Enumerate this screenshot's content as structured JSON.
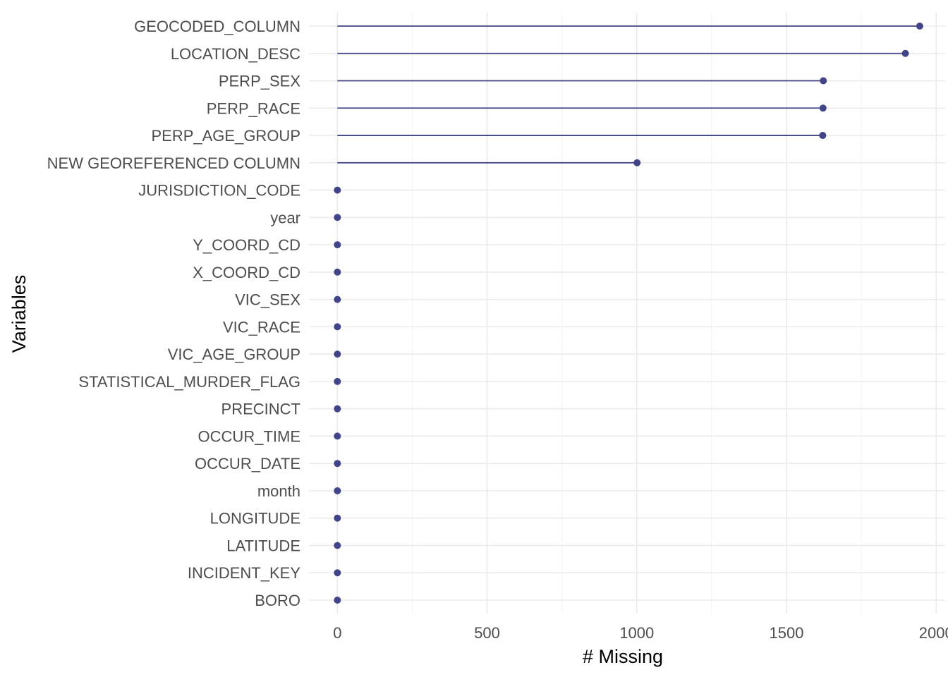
{
  "chart_data": {
    "type": "lollipop",
    "xlabel": "# Missing",
    "ylabel": "Variables",
    "xlim": [
      -95,
      2030
    ],
    "x_ticks": [
      0,
      500,
      1000,
      1500,
      2000
    ],
    "grid": true,
    "color": "#414487",
    "categories": [
      "GEOCODED_COLUMN",
      "LOCATION_DESC",
      "PERP_SEX",
      "PERP_RACE",
      "PERP_AGE_GROUP",
      "NEW GEOREFERENCED COLUMN",
      "JURISDICTION_CODE",
      "year",
      "Y_COORD_CD",
      "X_COORD_CD",
      "VIC_SEX",
      "VIC_RACE",
      "VIC_AGE_GROUP",
      "STATISTICAL_MURDER_FLAG",
      "PRECINCT",
      "OCCUR_TIME",
      "OCCUR_DATE",
      "month",
      "LONGITUDE",
      "LATITUDE",
      "INCIDENT_KEY",
      "BORO"
    ],
    "values": [
      1945,
      1897,
      1623,
      1622,
      1621,
      1001,
      0,
      0,
      0,
      0,
      0,
      0,
      0,
      0,
      0,
      0,
      0,
      0,
      0,
      0,
      0,
      0
    ]
  }
}
